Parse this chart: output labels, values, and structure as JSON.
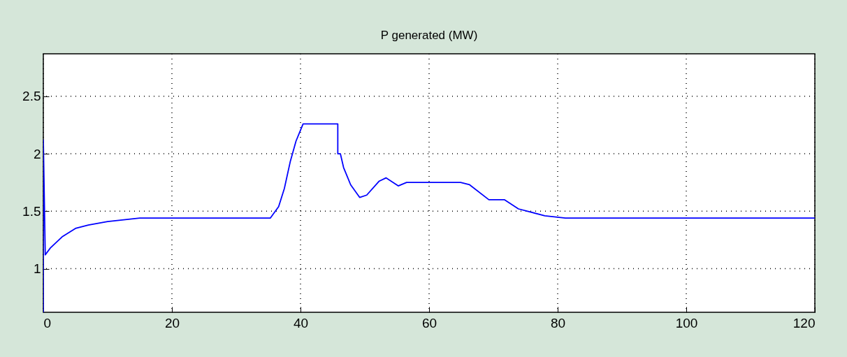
{
  "chart_data": {
    "type": "line",
    "title": "P generated (MW)",
    "x": [
      0,
      0,
      0.3,
      1.1,
      3,
      5,
      7,
      10,
      15,
      35.3,
      36.6,
      37.5,
      38.4,
      39.3,
      40.4,
      45.8,
      45.8,
      46.2,
      46.7,
      47.8,
      49.2,
      50.3,
      52.2,
      53.3,
      55.2,
      56.5,
      64.9,
      66.3,
      69.3,
      71.7,
      73.9,
      78,
      81.2,
      120
    ],
    "series": [
      {
        "color": "#0000ff",
        "values": [
          0.62,
          2.12,
          1.12,
          1.18,
          1.28,
          1.35,
          1.38,
          1.41,
          1.44,
          1.44,
          1.54,
          1.7,
          1.93,
          2.11,
          2.26,
          2.26,
          2.0,
          2.0,
          1.88,
          1.73,
          1.62,
          1.64,
          1.76,
          1.79,
          1.72,
          1.75,
          1.75,
          1.73,
          1.6,
          1.6,
          1.52,
          1.46,
          1.44,
          1.44
        ]
      }
    ],
    "xlim": [
      0,
      120
    ],
    "xticks": [
      0,
      20,
      40,
      60,
      80,
      100,
      120
    ],
    "ylim": [
      0.62,
      2.87
    ],
    "yticks": [
      1,
      1.5,
      2,
      2.5
    ],
    "grid": true,
    "legend": false,
    "marker": "none",
    "line_style": "solid"
  }
}
